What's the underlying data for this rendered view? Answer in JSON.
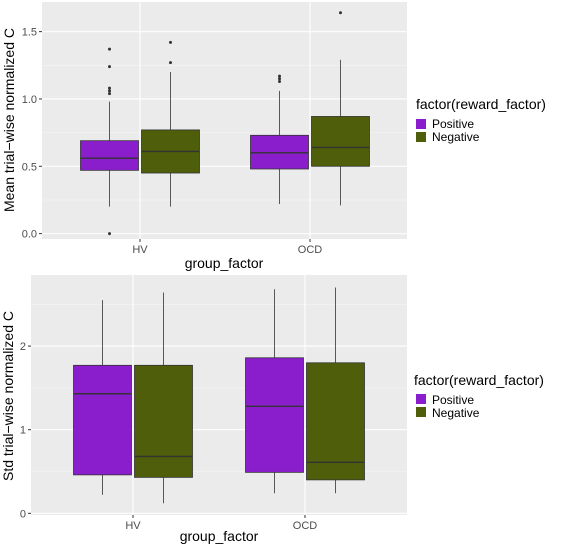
{
  "colors": {
    "panel_bg": "#ebebeb",
    "grid_major": "#ffffff",
    "grid_minor": "#f5f5f5",
    "positive": "#8a1ecd",
    "negative": "#4e5e0a",
    "outline": "#333333"
  },
  "chart_data": [
    {
      "type": "box",
      "title": "",
      "xlabel": "group_factor",
      "ylabel": "Mean trial−wise normalized C",
      "ylim": [
        -0.04,
        1.72
      ],
      "y_ticks": [
        0.0,
        0.5,
        1.0,
        1.5
      ],
      "y_tick_labels": [
        "0.0",
        "0.5",
        "1.0",
        "1.5"
      ],
      "categories": [
        "HV",
        "OCD"
      ],
      "grid": true,
      "legend": {
        "title": "factor(reward_factor)",
        "placement": "right",
        "entries": [
          "Positive",
          "Negative"
        ]
      },
      "series": [
        {
          "name": "Positive",
          "boxes": [
            {
              "category": "HV",
              "whisker_low": 0.2,
              "q1": 0.47,
              "median": 0.56,
              "q3": 0.69,
              "whisker_high": 0.98,
              "outliers": [
                1.37,
                1.24,
                1.08,
                1.06,
                1.04,
                0.0
              ]
            },
            {
              "category": "OCD",
              "whisker_low": 0.22,
              "q1": 0.48,
              "median": 0.6,
              "q3": 0.73,
              "whisker_high": 1.06,
              "outliers": [
                1.17,
                1.15,
                1.13
              ]
            }
          ]
        },
        {
          "name": "Negative",
          "boxes": [
            {
              "category": "HV",
              "whisker_low": 0.2,
              "q1": 0.45,
              "median": 0.61,
              "q3": 0.77,
              "whisker_high": 1.2,
              "outliers": [
                1.42,
                1.27
              ]
            },
            {
              "category": "OCD",
              "whisker_low": 0.21,
              "q1": 0.5,
              "median": 0.64,
              "q3": 0.87,
              "whisker_high": 1.29,
              "outliers": [
                1.64
              ]
            }
          ]
        }
      ]
    },
    {
      "type": "box",
      "title": "",
      "xlabel": "group_factor",
      "ylabel": "Std trial−wise normalized C",
      "ylim": [
        -0.02,
        2.85
      ],
      "y_ticks": [
        0,
        1,
        2
      ],
      "y_tick_labels": [
        "0",
        "1",
        "2"
      ],
      "categories": [
        "HV",
        "OCD"
      ],
      "grid": true,
      "legend": {
        "title": "factor(reward_factor)",
        "placement": "right",
        "entries": [
          "Positive",
          "Negative"
        ]
      },
      "series": [
        {
          "name": "Positive",
          "boxes": [
            {
              "category": "HV",
              "whisker_low": 0.22,
              "q1": 0.46,
              "median": 1.43,
              "q3": 1.77,
              "whisker_high": 2.55,
              "outliers": []
            },
            {
              "category": "OCD",
              "whisker_low": 0.24,
              "q1": 0.49,
              "median": 1.28,
              "q3": 1.86,
              "whisker_high": 2.68,
              "outliers": []
            }
          ]
        },
        {
          "name": "Negative",
          "boxes": [
            {
              "category": "HV",
              "whisker_low": 0.12,
              "q1": 0.43,
              "median": 0.68,
              "q3": 1.77,
              "whisker_high": 2.64,
              "outliers": []
            },
            {
              "category": "OCD",
              "whisker_low": 0.24,
              "q1": 0.4,
              "median": 0.61,
              "q3": 1.8,
              "whisker_high": 2.7,
              "outliers": []
            }
          ]
        }
      ]
    }
  ]
}
